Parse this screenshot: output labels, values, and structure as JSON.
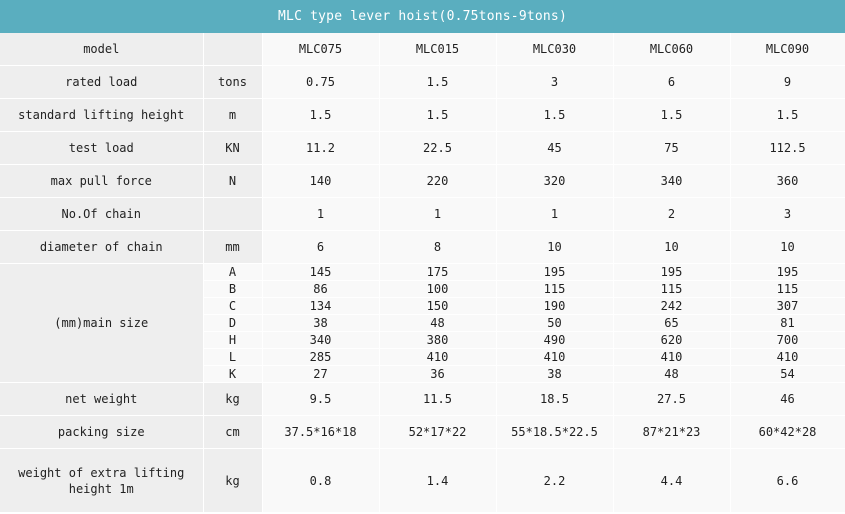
{
  "title": "MLC type lever hoist(0.75tons-9tons)",
  "colors": {
    "header_bg": "#5aaebf",
    "gray_cell": "#eeeeee",
    "light_cell": "#f9f9f9",
    "text": "#222222",
    "border": "#ffffff"
  },
  "header": {
    "label": "model",
    "unit": "",
    "models": [
      "MLC075",
      "MLC015",
      "MLC030",
      "MLC060",
      "MLC090"
    ]
  },
  "rows_top": [
    {
      "label": "rated load",
      "unit": "tons",
      "values": [
        "0.75",
        "1.5",
        "3",
        "6",
        "9"
      ]
    },
    {
      "label": "standard lifting height",
      "unit": "m",
      "values": [
        "1.5",
        "1.5",
        "1.5",
        "1.5",
        "1.5"
      ]
    },
    {
      "label": "test load",
      "unit": "KN",
      "values": [
        "11.2",
        "22.5",
        "45",
        "75",
        "112.5"
      ]
    },
    {
      "label": "max pull force",
      "unit": "N",
      "values": [
        "140",
        "220",
        "320",
        "340",
        "360"
      ]
    },
    {
      "label": "No.Of chain",
      "unit": "",
      "values": [
        "1",
        "1",
        "1",
        "2",
        "3"
      ]
    },
    {
      "label": "diameter of chain",
      "unit": "mm",
      "values": [
        "6",
        "8",
        "10",
        "10",
        "10"
      ]
    }
  ],
  "main_size": {
    "label": "(mm)main size",
    "rows": [
      {
        "dim": "A",
        "values": [
          "145",
          "175",
          "195",
          "195",
          "195"
        ]
      },
      {
        "dim": "B",
        "values": [
          "86",
          "100",
          "115",
          "115",
          "115"
        ]
      },
      {
        "dim": "C",
        "values": [
          "134",
          "150",
          "190",
          "242",
          "307"
        ]
      },
      {
        "dim": "D",
        "values": [
          "38",
          "48",
          "50",
          "65",
          "81"
        ]
      },
      {
        "dim": "H",
        "values": [
          "340",
          "380",
          "490",
          "620",
          "700"
        ]
      },
      {
        "dim": "L",
        "values": [
          "285",
          "410",
          "410",
          "410",
          "410"
        ]
      },
      {
        "dim": "K",
        "values": [
          "27",
          "36",
          "38",
          "48",
          "54"
        ]
      }
    ]
  },
  "rows_bottom": [
    {
      "label": "net weight",
      "unit": "kg",
      "values": [
        "9.5",
        "11.5",
        "18.5",
        "27.5",
        "46"
      ]
    },
    {
      "label": "packing size",
      "unit": "cm",
      "values": [
        "37.5*16*18",
        "52*17*22",
        "55*18.5*22.5",
        "87*21*23",
        "60*42*28"
      ]
    }
  ],
  "row_last": {
    "label": "weight of extra lifting height 1m",
    "unit": "kg",
    "values": [
      "0.8",
      "1.4",
      "2.2",
      "4.4",
      "6.6"
    ]
  }
}
